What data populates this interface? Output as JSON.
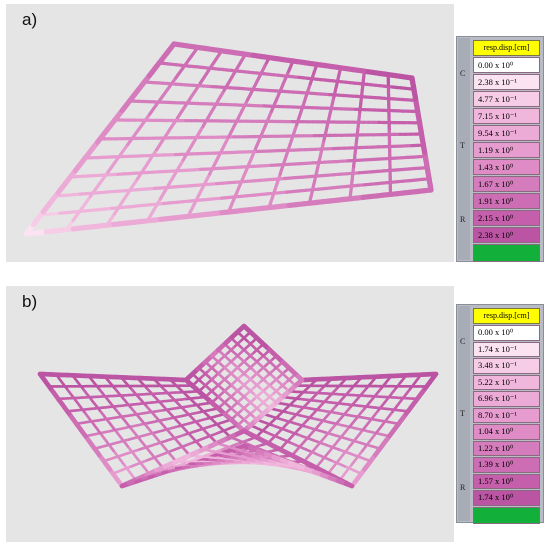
{
  "panels": [
    {
      "label": "a)",
      "legend": {
        "header": "resp.disp.[cm]",
        "side_letters": [
          "C",
          "T",
          "R"
        ],
        "entries": [
          "0.00 x 10⁰",
          "2.38 x 10⁻¹",
          "4.77 x 10⁻¹",
          "7.15 x 10⁻¹",
          "9.54 x 10⁻¹",
          "1.19 x 10⁰",
          "1.43 x 10⁰",
          "1.67 x 10⁰",
          "1.91 x 10⁰",
          "2.15 x 10⁰",
          "2.38 x 10⁰"
        ]
      }
    },
    {
      "label": "b)",
      "legend": {
        "header": "resp.disp.[cm]",
        "side_letters": [
          "C",
          "T",
          "R"
        ],
        "entries": [
          "0.00 x 10⁰",
          "1.74 x 10⁻¹",
          "3.48 x 10⁻¹",
          "5.22 x 10⁻¹",
          "6.96 x 10⁻¹",
          "8.70 x 10⁻¹",
          "1.04 x 10⁰",
          "1.22 x 10⁰",
          "1.39 x 10⁰",
          "1.57 x 10⁰",
          "1.74 x 10⁰"
        ]
      }
    }
  ],
  "colors": {
    "scale": [
      "#ffffff",
      "#fbe3f1",
      "#f6cce6",
      "#f1b6dc",
      "#ecaad6",
      "#e69ccf",
      "#de8bc6",
      "#d57cbd",
      "#cd6db4",
      "#c55eab",
      "#bc54a4"
    ],
    "over_range": "#12b03a",
    "header": "#ffff00",
    "panel_bg": "#e5e5e5"
  }
}
